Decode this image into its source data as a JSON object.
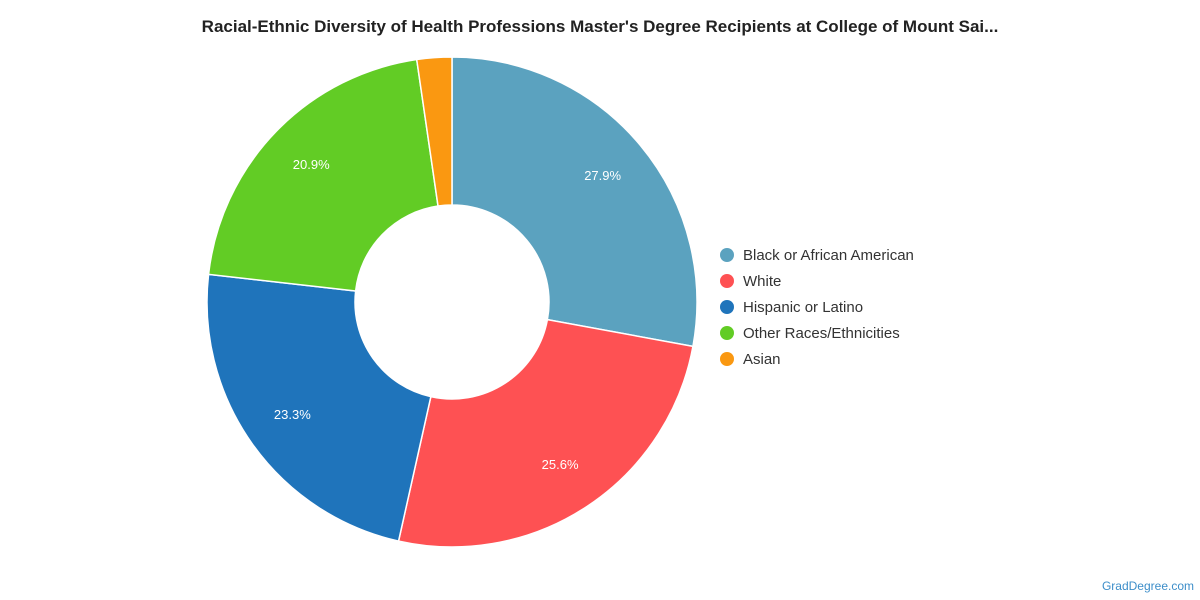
{
  "chart_data": {
    "type": "pie",
    "title": "Racial-Ethnic Diversity of Health Professions Master's Degree Recipients at College of Mount Sai...",
    "categories": [
      "Black or African American",
      "White",
      "Hispanic or Latino",
      "Other Races/Ethnicities",
      "Asian"
    ],
    "values": [
      27.9,
      25.6,
      23.3,
      20.9,
      2.3
    ],
    "value_labels": [
      "27.9%",
      "25.6%",
      "23.3%",
      "20.9%",
      ""
    ],
    "colors": [
      "#5ba2bf",
      "#fe5153",
      "#1f74bb",
      "#62cc25",
      "#fa9811"
    ],
    "legend_position": "right"
  },
  "watermark": "GradDegree.com"
}
